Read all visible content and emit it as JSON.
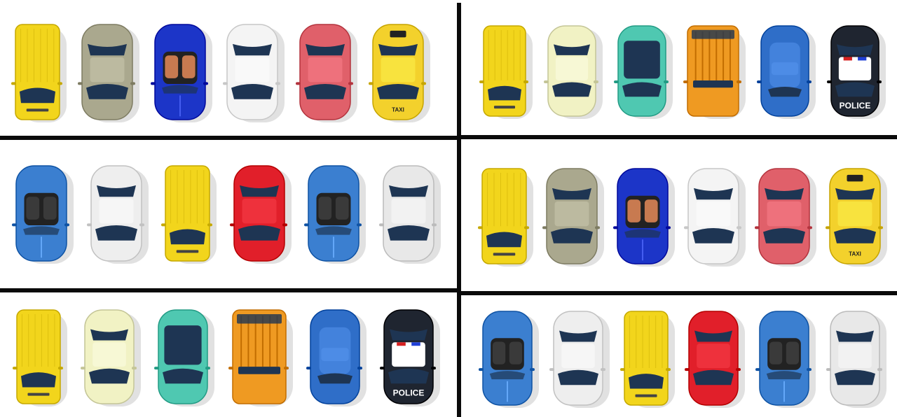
{
  "panels": [
    {
      "id": "p1",
      "cars": [
        {
          "kind": "van",
          "color": "#f2d51c",
          "icon": "yellow-van-icon"
        },
        {
          "kind": "sedan",
          "color": "#aaa88e",
          "icon": "beige-sedan-icon"
        },
        {
          "kind": "convertible",
          "color": "#1c35c8",
          "icon": "blue-convertible-icon"
        },
        {
          "kind": "sedan",
          "color": "#f4f4f4",
          "icon": "white-sedan-icon"
        },
        {
          "kind": "hatch",
          "color": "#e0606a",
          "icon": "red-hatchback-icon"
        },
        {
          "kind": "taxi",
          "color": "#f3d12c",
          "icon": "taxi-car-icon",
          "text": "TAXI"
        }
      ]
    },
    {
      "id": "p2",
      "cars": [
        {
          "kind": "van",
          "color": "#f2d51c",
          "icon": "yellow-van-icon"
        },
        {
          "kind": "sedan",
          "color": "#f1f2c4",
          "icon": "cream-sedan-icon"
        },
        {
          "kind": "mpv",
          "color": "#4fc8b1",
          "icon": "teal-minivan-icon"
        },
        {
          "kind": "suv",
          "color": "#ef9a22",
          "icon": "orange-suv-icon"
        },
        {
          "kind": "coupe",
          "color": "#2f6ec8",
          "icon": "blue-coupe-icon"
        },
        {
          "kind": "police",
          "color": "#1f2530",
          "icon": "police-car-icon",
          "text": "POLICE"
        }
      ]
    },
    {
      "id": "p3",
      "cars": [
        {
          "kind": "roadster",
          "color": "#3b7fd0",
          "icon": "blue-roadster-icon"
        },
        {
          "kind": "sedan",
          "color": "#eeeeee",
          "icon": "silver-sedan-icon"
        },
        {
          "kind": "van",
          "color": "#f2d51c",
          "icon": "yellow-van-icon"
        },
        {
          "kind": "hatch",
          "color": "#e11f2a",
          "icon": "red-hatchback-icon"
        },
        {
          "kind": "roadster",
          "color": "#3b7fd0",
          "icon": "blue-roadster-icon"
        },
        {
          "kind": "sedan",
          "color": "#e8e8e8",
          "icon": "silver-sedan-icon"
        }
      ]
    },
    {
      "id": "p4",
      "cars": [
        {
          "kind": "van",
          "color": "#f2d51c",
          "icon": "yellow-van-icon"
        },
        {
          "kind": "sedan",
          "color": "#aaa88e",
          "icon": "beige-sedan-icon"
        },
        {
          "kind": "convertible",
          "color": "#1c35c8",
          "icon": "blue-convertible-icon"
        },
        {
          "kind": "sedan",
          "color": "#f4f4f4",
          "icon": "white-sedan-icon"
        },
        {
          "kind": "hatch",
          "color": "#e0606a",
          "icon": "red-hatchback-icon"
        },
        {
          "kind": "taxi",
          "color": "#f3d12c",
          "icon": "taxi-car-icon",
          "text": "TAXI"
        }
      ]
    },
    {
      "id": "p5",
      "cars": [
        {
          "kind": "van",
          "color": "#f2d51c",
          "icon": "yellow-van-icon"
        },
        {
          "kind": "sedan",
          "color": "#f1f2c4",
          "icon": "cream-sedan-icon"
        },
        {
          "kind": "mpv",
          "color": "#4fc8b1",
          "icon": "teal-minivan-icon"
        },
        {
          "kind": "suv",
          "color": "#ef9a22",
          "icon": "orange-suv-icon"
        },
        {
          "kind": "coupe",
          "color": "#2f6ec8",
          "icon": "blue-coupe-icon"
        },
        {
          "kind": "police",
          "color": "#1f2530",
          "icon": "police-car-icon",
          "text": "POLICE"
        }
      ]
    },
    {
      "id": "p6",
      "cars": [
        {
          "kind": "roadster",
          "color": "#3b7fd0",
          "icon": "blue-roadster-icon"
        },
        {
          "kind": "sedan",
          "color": "#eeeeee",
          "icon": "silver-sedan-icon"
        },
        {
          "kind": "van",
          "color": "#f2d51c",
          "icon": "yellow-van-icon"
        },
        {
          "kind": "hatch",
          "color": "#e11f2a",
          "icon": "red-hatchback-icon"
        },
        {
          "kind": "roadster",
          "color": "#3b7fd0",
          "icon": "blue-roadster-icon"
        },
        {
          "kind": "sedan",
          "color": "#e8e8e8",
          "icon": "silver-sedan-icon"
        }
      ]
    }
  ]
}
